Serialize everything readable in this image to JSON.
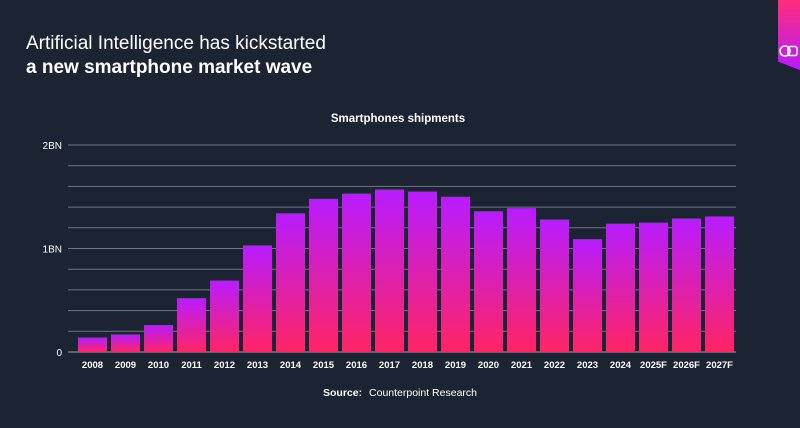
{
  "headline": {
    "line1": "Artificial Intelligence has kickstarted",
    "line2": "a new smartphone market wave"
  },
  "brand_icon": "speech-bubble-logo-icon",
  "colors": {
    "background": "#1c2433",
    "bar_top": "#b81cff",
    "bar_bottom": "#ff2463",
    "gridline": "#6e7585"
  },
  "chart_data": {
    "type": "bar",
    "title": "Smartphones shipments",
    "categories": [
      "2008",
      "2009",
      "2010",
      "2011",
      "2012",
      "2013",
      "2014",
      "2015",
      "2016",
      "2017",
      "2018",
      "2019",
      "2020",
      "2021",
      "2022",
      "2023",
      "2024",
      "2025F",
      "2026F",
      "2027F"
    ],
    "values": [
      0.14,
      0.17,
      0.26,
      0.52,
      0.69,
      1.03,
      1.34,
      1.48,
      1.53,
      1.57,
      1.55,
      1.5,
      1.36,
      1.39,
      1.28,
      1.09,
      1.24,
      1.25,
      1.29,
      1.31
    ],
    "unit": "BN",
    "ylim": [
      0,
      2
    ],
    "yticks": [
      {
        "value": 0,
        "label": "0"
      },
      {
        "value": 1,
        "label": "1BN"
      },
      {
        "value": 2,
        "label": "2BN"
      }
    ],
    "grid_step": 0.2,
    "grid": true,
    "legend": "none"
  },
  "source": {
    "label": "Source:",
    "text": "Counterpoint Research"
  }
}
